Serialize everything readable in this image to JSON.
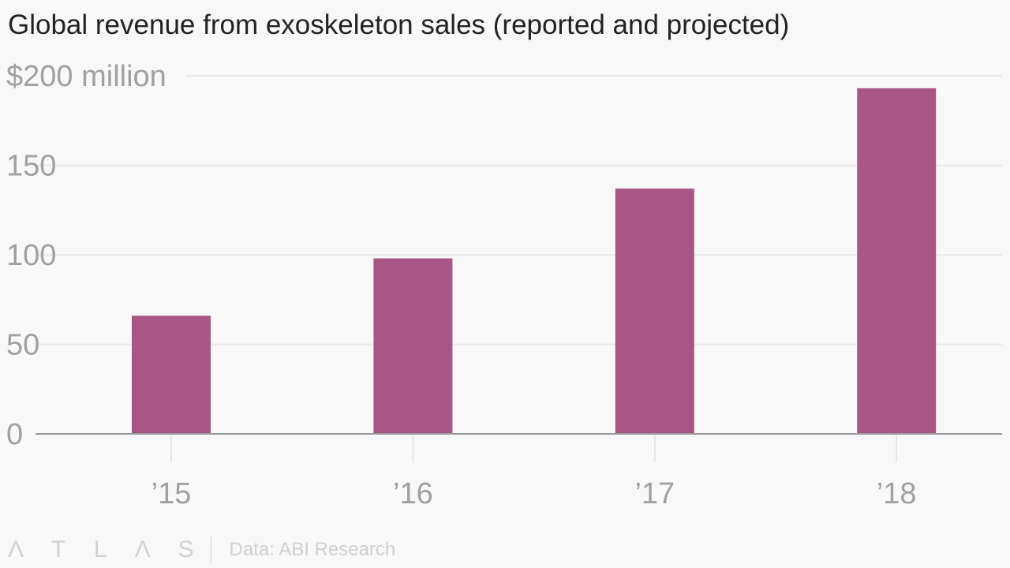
{
  "chart_data": {
    "type": "bar",
    "title": "Global revenue from exoskeleton sales (reported and projected)",
    "categories": [
      "’15",
      "’16",
      "’17",
      "’18"
    ],
    "values": [
      66,
      98,
      137,
      193
    ],
    "ylim": [
      0,
      200
    ],
    "yticks": [
      0,
      50,
      100,
      150,
      200
    ],
    "ytick_labels": [
      "0",
      "50",
      "100",
      "150",
      "$200 million"
    ],
    "xlabel": "",
    "ylabel": "",
    "grid": true,
    "bar_color": "#a85685"
  },
  "footer": {
    "logo": "ATLAS",
    "source": "Data: ABI Research"
  }
}
